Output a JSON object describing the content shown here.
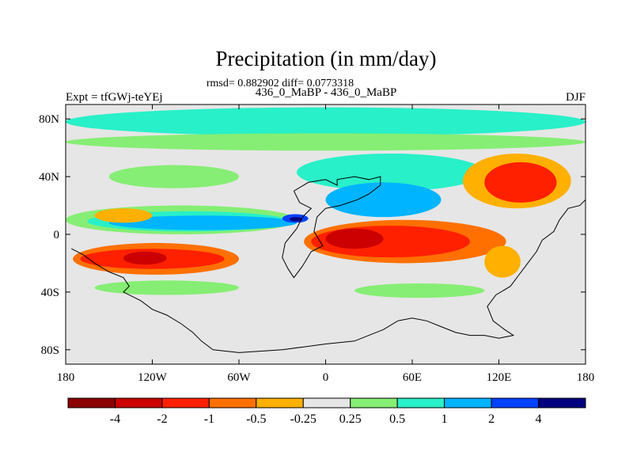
{
  "chart_data": {
    "type": "heatmap",
    "title": "Precipitation (in mm/day)",
    "subtitle_stats": "rmsd= 0.882902 diff= 0.0773318",
    "subtitle_comparison": "436_0_MaBP - 436_0_MaBP",
    "left_label": "Expt = tfGWj-teYEj",
    "right_label": "DJF",
    "xlim": [
      -180,
      180
    ],
    "ylim": [
      -90,
      90
    ],
    "x_ticks": [
      {
        "value": -180,
        "label": "180"
      },
      {
        "value": -120,
        "label": "120W"
      },
      {
        "value": -60,
        "label": "60W"
      },
      {
        "value": 0,
        "label": "0"
      },
      {
        "value": 60,
        "label": "60E"
      },
      {
        "value": 120,
        "label": "120E"
      },
      {
        "value": 180,
        "label": "180"
      }
    ],
    "y_ticks": [
      {
        "value": 80,
        "label": "80N"
      },
      {
        "value": 40,
        "label": "40N"
      },
      {
        "value": 0,
        "label": "0"
      },
      {
        "value": -40,
        "label": "40S"
      },
      {
        "value": -80,
        "label": "80S"
      }
    ],
    "colorbar": {
      "colors": [
        "#8b0000",
        "#cc0000",
        "#ff2000",
        "#ff7000",
        "#ffb000",
        "#e6e6e6",
        "#86ee74",
        "#28f0c8",
        "#00b4ff",
        "#0040ff",
        "#000080"
      ],
      "labels": [
        "-4",
        "-2",
        "-1",
        "-0.5",
        "-0.25",
        "0.25",
        "0.5",
        "1",
        "2",
        "4"
      ]
    },
    "background_color": "#e6e6e6",
    "anomaly_regions": [
      {
        "name": "northern-cyan-band",
        "class": 7,
        "lon": [
          -180,
          180
        ],
        "lat": [
          68,
          88
        ]
      },
      {
        "name": "arctic-green",
        "class": 6,
        "lon": [
          -180,
          180
        ],
        "lat": [
          58,
          70
        ]
      },
      {
        "name": "n-pacific-green",
        "class": 6,
        "lon": [
          -150,
          -60
        ],
        "lat": [
          32,
          48
        ]
      },
      {
        "name": "n-atlantic-cyan",
        "class": 7,
        "lon": [
          -20,
          110
        ],
        "lat": [
          30,
          56
        ]
      },
      {
        "name": "eq-pacific-green",
        "class": 6,
        "lon": [
          -180,
          -20
        ],
        "lat": [
          0,
          20
        ]
      },
      {
        "name": "eq-pacific-cyan",
        "class": 7,
        "lon": [
          -165,
          -25
        ],
        "lat": [
          2,
          16
        ]
      },
      {
        "name": "eq-pacific-lightblue",
        "class": 8,
        "lon": [
          -150,
          -20
        ],
        "lat": [
          3,
          13
        ]
      },
      {
        "name": "eq-pacific-blue",
        "class": 9,
        "lon": [
          -30,
          -12
        ],
        "lat": [
          8,
          14
        ]
      },
      {
        "name": "eq-pacific-navy",
        "class": 10,
        "lon": [
          -25,
          -16
        ],
        "lat": [
          9,
          12
        ]
      },
      {
        "name": "n-atlantic-lightblue",
        "class": 8,
        "lon": [
          0,
          80
        ],
        "lat": [
          12,
          36
        ]
      },
      {
        "name": "kuroshio-orange",
        "class": 4,
        "lon": [
          95,
          170
        ],
        "lat": [
          18,
          56
        ]
      },
      {
        "name": "kuroshio-red",
        "class": 2,
        "lon": [
          110,
          160
        ],
        "lat": [
          22,
          50
        ]
      },
      {
        "name": "n-pacific-yellow",
        "class": 4,
        "lon": [
          -160,
          -120
        ],
        "lat": [
          8,
          18
        ]
      },
      {
        "name": "s-pacific-orange",
        "class": 3,
        "lon": [
          -175,
          -60
        ],
        "lat": [
          -28,
          -6
        ]
      },
      {
        "name": "s-pacific-red",
        "class": 2,
        "lon": [
          -170,
          -70
        ],
        "lat": [
          -24,
          -10
        ]
      },
      {
        "name": "s-pacific-darkred",
        "class": 1,
        "lon": [
          -140,
          -110
        ],
        "lat": [
          -21,
          -12
        ]
      },
      {
        "name": "eq-atlantic-orange",
        "class": 3,
        "lon": [
          -15,
          125
        ],
        "lat": [
          -20,
          10
        ]
      },
      {
        "name": "eq-atlantic-red",
        "class": 2,
        "lon": [
          -10,
          100
        ],
        "lat": [
          -16,
          6
        ]
      },
      {
        "name": "eq-atlantic-darkred",
        "class": 1,
        "lon": [
          0,
          40
        ],
        "lat": [
          -10,
          4
        ]
      },
      {
        "name": "s-indian-orange",
        "class": 4,
        "lon": [
          110,
          135
        ],
        "lat": [
          -30,
          -8
        ]
      },
      {
        "name": "s-green-band",
        "class": 6,
        "lon": [
          -160,
          -60
        ],
        "lat": [
          -42,
          -32
        ]
      },
      {
        "name": "s-green-band-east",
        "class": 6,
        "lon": [
          20,
          110
        ],
        "lat": [
          -44,
          -34
        ]
      }
    ],
    "coastline_outline": [
      [
        -22,
        30
      ],
      [
        -12,
        36
      ],
      [
        0,
        38
      ],
      [
        8,
        34
      ],
      [
        8,
        38
      ],
      [
        20,
        40
      ],
      [
        30,
        38
      ],
      [
        38,
        40
      ],
      [
        38,
        34
      ],
      [
        30,
        28
      ],
      [
        22,
        24
      ],
      [
        10,
        20
      ],
      [
        0,
        18
      ],
      [
        -6,
        12
      ],
      [
        -8,
        2
      ],
      [
        -2,
        -8
      ],
      [
        -10,
        -12
      ],
      [
        -16,
        -22
      ],
      [
        -22,
        -30
      ],
      [
        -26,
        -24
      ],
      [
        -30,
        -16
      ],
      [
        -28,
        -6
      ],
      [
        -20,
        4
      ],
      [
        -16,
        12
      ],
      [
        -10,
        18
      ],
      [
        -18,
        22
      ],
      [
        -22,
        30
      ]
    ],
    "coastline_outline_2": [
      [
        -176,
        -10
      ],
      [
        -168,
        -14
      ],
      [
        -160,
        -20
      ],
      [
        -150,
        -26
      ],
      [
        -140,
        -30
      ],
      [
        -136,
        -36
      ],
      [
        -140,
        -40
      ],
      [
        -128,
        -46
      ],
      [
        -120,
        -52
      ],
      [
        -110,
        -56
      ],
      [
        -100,
        -62
      ],
      [
        -92,
        -68
      ],
      [
        -86,
        -74
      ],
      [
        -78,
        -80
      ],
      [
        -60,
        -82
      ],
      [
        -30,
        -80
      ],
      [
        0,
        -76
      ],
      [
        20,
        -74
      ],
      [
        40,
        -66
      ],
      [
        50,
        -60
      ],
      [
        60,
        -58
      ],
      [
        70,
        -60
      ],
      [
        80,
        -64
      ],
      [
        90,
        -68
      ],
      [
        100,
        -70
      ],
      [
        110,
        -70
      ],
      [
        120,
        -72
      ],
      [
        130,
        -70
      ],
      [
        124,
        -66
      ],
      [
        116,
        -60
      ],
      [
        112,
        -50
      ],
      [
        118,
        -42
      ],
      [
        128,
        -36
      ],
      [
        134,
        -28
      ],
      [
        140,
        -20
      ],
      [
        146,
        -12
      ],
      [
        150,
        -4
      ],
      [
        158,
        2
      ],
      [
        162,
        10
      ],
      [
        168,
        18
      ],
      [
        176,
        20
      ],
      [
        180,
        24
      ]
    ]
  }
}
